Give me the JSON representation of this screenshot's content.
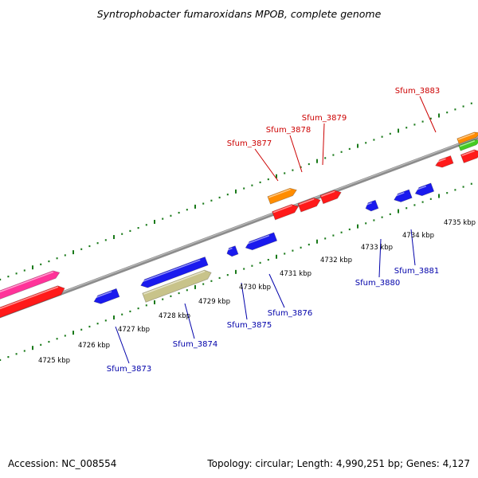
{
  "title": "Syntrophobacter fumaroxidans MPOB, complete genome",
  "footer": {
    "accession": "Accession: NC_008554",
    "topology": "Topology: circular; Length: 4,990,251 bp; Genes: 4,127"
  },
  "colors": {
    "backbone": "#8c8c8c",
    "tick": "#1a7a1a",
    "forward_label": "#cc0000",
    "reverse_label": "#0000aa",
    "red": "#ff1a1a",
    "blue": "#1a1aee",
    "orange": "#ff8c00",
    "pink": "#ff3399",
    "green": "#44cc22",
    "khaki": "#c8c38a"
  },
  "kbp_ticks": [
    "4725 kbp",
    "4726 kbp",
    "4727 kbp",
    "4728 kbp",
    "4729 kbp",
    "4730 kbp",
    "4731 kbp",
    "4732 kbp",
    "4733 kbp",
    "4734 kbp",
    "4735 kbp"
  ],
  "forward_labels": [
    "Sfum_3877",
    "Sfum_3878",
    "Sfum_3879",
    "Sfum_3883"
  ],
  "reverse_labels": [
    "Sfum_3873",
    "Sfum_3874",
    "Sfum_3875",
    "Sfum_3876",
    "Sfum_3880",
    "Sfum_3881"
  ]
}
